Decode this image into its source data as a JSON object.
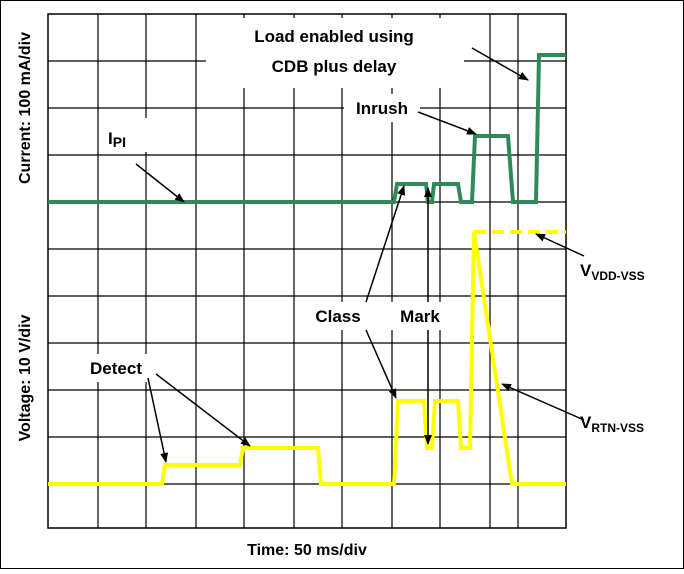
{
  "y_axis_top": "Current: 100 mA/div",
  "y_axis_bottom": "Voltage: 10 V/div",
  "x_axis": "Time: 50 ms/div",
  "annotations": {
    "load": [
      "Load enabled using",
      "CDB plus delay"
    ],
    "inrush": "Inrush",
    "ipi": {
      "main": "I",
      "sub": "PI"
    },
    "class": "Class",
    "mark": "Mark",
    "detect": "Detect",
    "vdd": {
      "main": "V",
      "sub": "VDD-VSS"
    },
    "vrtn": {
      "main": "V",
      "sub": "RTN-VSS"
    }
  }
}
